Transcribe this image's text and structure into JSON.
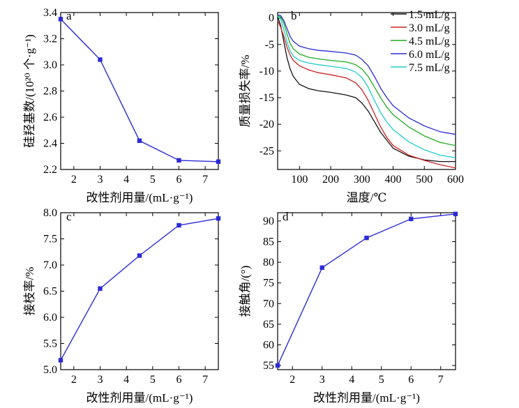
{
  "chart_data": [
    {
      "id": "a",
      "type": "line",
      "panel_label": "a",
      "xlabel": "改性剂用量/(mL·g⁻¹)",
      "ylabel": "硅羟基数/(10²⁰ 个·g⁻¹)",
      "xlim": [
        1.5,
        7.5
      ],
      "ylim": [
        2.2,
        3.4
      ],
      "xticks": [
        2,
        3,
        4,
        5,
        6,
        7
      ],
      "yticks": [
        2.2,
        2.4,
        2.6,
        2.8,
        3.0,
        3.2,
        3.4
      ],
      "ytick_labels": [
        "2.2",
        "2.4",
        "2.6",
        "2.8",
        "3.0",
        "3.2",
        "3.4"
      ],
      "color": "#2b2bd6",
      "x": [
        1.5,
        3.0,
        4.5,
        6.0,
        7.5
      ],
      "y": [
        3.35,
        3.04,
        2.42,
        2.27,
        2.26
      ]
    },
    {
      "id": "b",
      "type": "line",
      "panel_label": "b",
      "xlabel": "温度/℃",
      "ylabel": "质量损失率/%",
      "xlim": [
        30,
        600
      ],
      "ylim": [
        -28.5,
        1
      ],
      "xticks": [
        100,
        200,
        300,
        400,
        500,
        600
      ],
      "yticks": [
        0,
        -5,
        -10,
        -15,
        -20,
        -25
      ],
      "legend_position": "top-right",
      "series": [
        {
          "name": "1.5 mL/g",
          "color": "#111111",
          "x": [
            30,
            40,
            50,
            60,
            70,
            80,
            100,
            130,
            160,
            200,
            250,
            280,
            300,
            320,
            340,
            360,
            380,
            400,
            450,
            500,
            550,
            600
          ],
          "y": [
            0.3,
            -1.5,
            -4.5,
            -7.5,
            -9.6,
            -11.0,
            -12.5,
            -13.3,
            -13.7,
            -14.0,
            -14.5,
            -15.0,
            -16.0,
            -17.5,
            -19.5,
            -21.5,
            -23.0,
            -24.5,
            -26.0,
            -26.7,
            -27.0,
            -27.0
          ]
        },
        {
          "name": "3.0 mL/g",
          "color": "#cc2222",
          "x": [
            30,
            40,
            50,
            60,
            70,
            80,
            100,
            130,
            160,
            200,
            250,
            280,
            300,
            320,
            340,
            360,
            380,
            400,
            450,
            500,
            550,
            600
          ],
          "y": [
            -0.5,
            -1.8,
            -3.5,
            -5.5,
            -7.0,
            -8.0,
            -9.0,
            -9.8,
            -10.3,
            -10.7,
            -11.3,
            -12.2,
            -13.5,
            -15.5,
            -18.0,
            -20.5,
            -22.5,
            -24.0,
            -25.8,
            -26.8,
            -27.6,
            -28.2
          ]
        },
        {
          "name": "4.5 mL/g",
          "color": "#22aa22",
          "x": [
            30,
            40,
            50,
            60,
            70,
            80,
            100,
            130,
            160,
            200,
            250,
            280,
            300,
            320,
            340,
            360,
            380,
            400,
            450,
            500,
            550,
            600
          ],
          "y": [
            0.4,
            0.2,
            -1.0,
            -3.0,
            -4.8,
            -5.8,
            -6.8,
            -7.4,
            -7.7,
            -8.0,
            -8.3,
            -8.8,
            -9.6,
            -11.0,
            -13.0,
            -15.0,
            -16.8,
            -18.2,
            -20.5,
            -22.2,
            -23.4,
            -24.0
          ]
        },
        {
          "name": "6.0 mL/g",
          "color": "#2b2bd6",
          "x": [
            30,
            40,
            50,
            60,
            70,
            80,
            100,
            130,
            160,
            200,
            250,
            280,
            300,
            320,
            340,
            360,
            380,
            400,
            450,
            500,
            550,
            600
          ],
          "y": [
            0.6,
            0.4,
            -0.5,
            -2.0,
            -3.5,
            -4.4,
            -5.3,
            -5.8,
            -6.1,
            -6.3,
            -6.6,
            -7.0,
            -7.8,
            -9.0,
            -11.0,
            -13.2,
            -15.0,
            -16.5,
            -18.8,
            -20.3,
            -21.4,
            -21.9
          ]
        },
        {
          "name": "7.5 mL/g",
          "color": "#22cccc",
          "x": [
            30,
            40,
            50,
            60,
            70,
            80,
            100,
            130,
            160,
            200,
            250,
            280,
            300,
            320,
            340,
            360,
            380,
            400,
            450,
            500,
            550,
            600
          ],
          "y": [
            0.3,
            -0.3,
            -2.2,
            -4.5,
            -6.2,
            -7.2,
            -8.0,
            -8.5,
            -8.8,
            -9.1,
            -9.5,
            -10.2,
            -11.2,
            -13.0,
            -15.5,
            -17.8,
            -19.6,
            -21.0,
            -23.3,
            -24.8,
            -25.8,
            -26.3
          ]
        }
      ]
    },
    {
      "id": "c",
      "type": "line",
      "panel_label": "c",
      "xlabel": "改性剂用量/(mL·g⁻¹)",
      "ylabel": "接枝率/%",
      "xlim": [
        1.5,
        7.5
      ],
      "ylim": [
        5.0,
        8.0
      ],
      "xticks": [
        2,
        3,
        4,
        5,
        6,
        7
      ],
      "yticks": [
        5.0,
        5.5,
        6.0,
        6.5,
        7.0,
        7.5,
        8.0
      ],
      "ytick_labels": [
        "5.0",
        "5.5",
        "6.0",
        "6.5",
        "7.0",
        "7.5",
        "8.0"
      ],
      "color": "#2b2bd6",
      "x": [
        1.5,
        3.0,
        4.5,
        6.0,
        7.5
      ],
      "y": [
        5.18,
        6.55,
        7.18,
        7.76,
        7.89
      ]
    },
    {
      "id": "d",
      "type": "line",
      "panel_label": "d",
      "xlabel": "改性剂用量/(mL·g⁻¹)",
      "ylabel": "接触角/(°)",
      "xlim": [
        1.5,
        7.5
      ],
      "ylim": [
        54,
        92
      ],
      "xticks": [
        2,
        3,
        4,
        5,
        6,
        7
      ],
      "yticks": [
        55,
        60,
        65,
        70,
        75,
        80,
        85,
        90
      ],
      "color": "#2b2bd6",
      "x": [
        1.5,
        3.0,
        4.5,
        6.0,
        7.5
      ],
      "y": [
        55.0,
        78.7,
        85.9,
        90.5,
        91.7
      ]
    }
  ]
}
